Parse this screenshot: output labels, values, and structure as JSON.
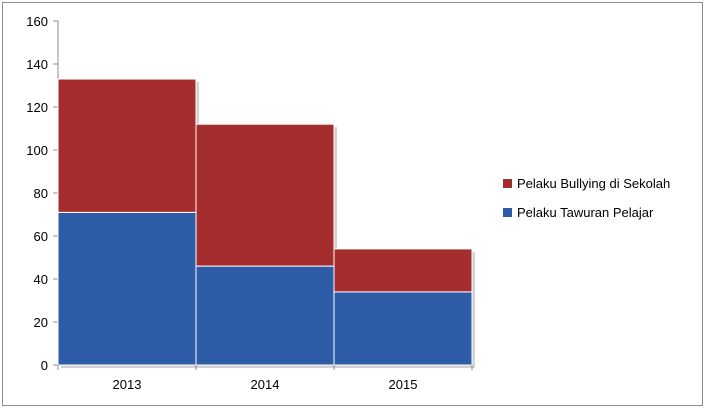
{
  "chart_data": {
    "type": "bar",
    "stacked": true,
    "categories": [
      "2013",
      "2014",
      "2015"
    ],
    "series": [
      {
        "name": "Pelaku Tawuran Pelajar",
        "values": [
          71,
          46,
          34
        ],
        "color": "#2e5ca6"
      },
      {
        "name": "Pelaku Bullying di Sekolah",
        "values": [
          62,
          66,
          20
        ],
        "color": "#a52d2d"
      }
    ],
    "ylim": [
      0,
      160
    ],
    "yticks": [
      0,
      20,
      40,
      60,
      80,
      100,
      120,
      140,
      160
    ],
    "title": "",
    "xlabel": "",
    "ylabel": "",
    "grid": false,
    "legend": {
      "placement": "right",
      "entries": [
        "Pelaku Bullying di Sekolah",
        "Pelaku Tawuran Pelajar"
      ]
    }
  }
}
